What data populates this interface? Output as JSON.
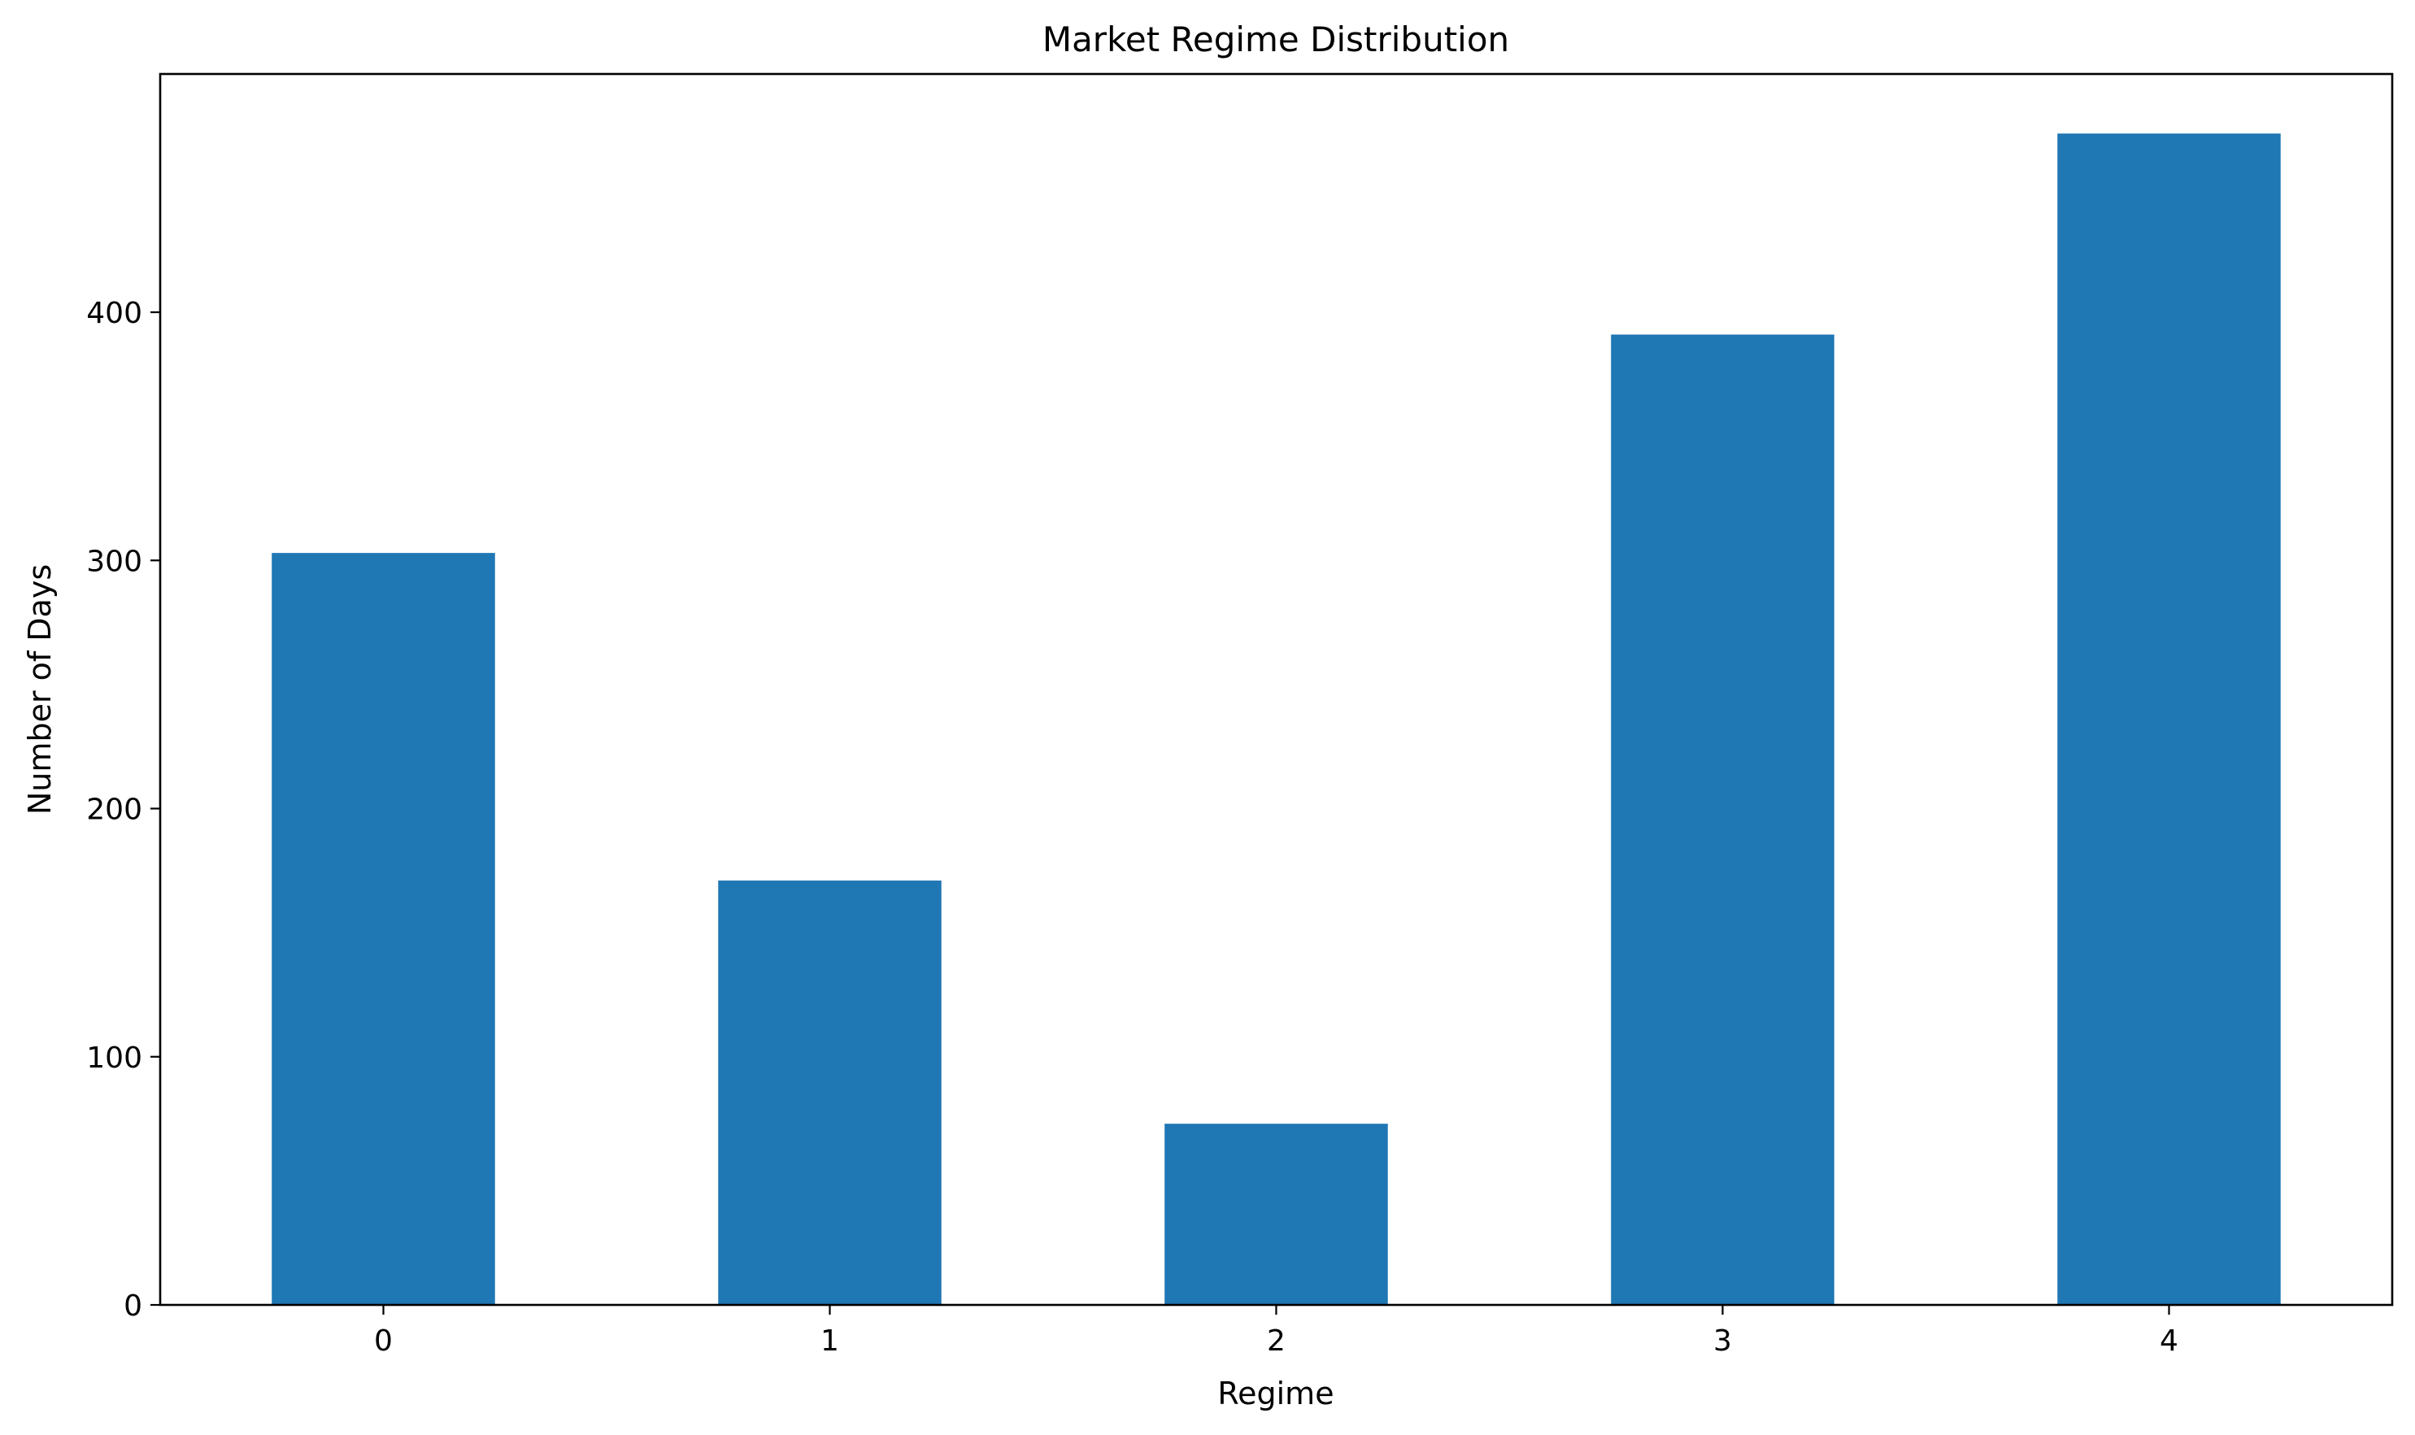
{
  "chart_data": {
    "type": "bar",
    "title": "Market Regime Distribution",
    "xlabel": "Regime",
    "ylabel": "Number of Days",
    "categories": [
      "0",
      "1",
      "2",
      "3",
      "4"
    ],
    "values": [
      303,
      171,
      73,
      391,
      472
    ],
    "ylim": [
      0,
      496
    ],
    "yticks": [
      0,
      100,
      200,
      300,
      400
    ],
    "grid": false,
    "legend": "none",
    "bar_color": "#1f77b4"
  }
}
